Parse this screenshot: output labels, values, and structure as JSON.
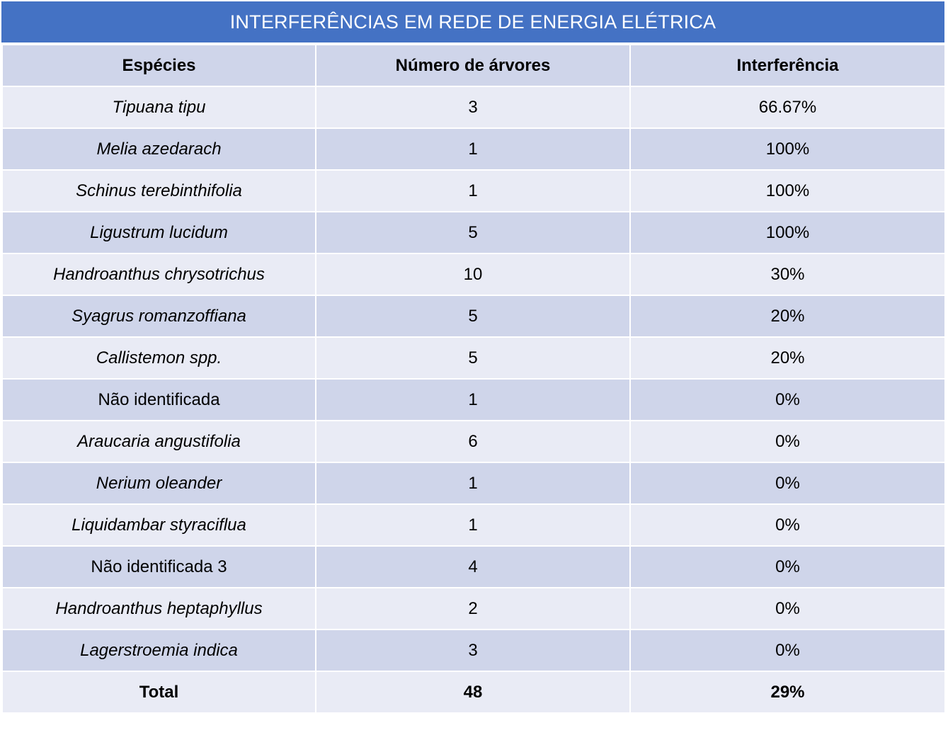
{
  "title": "INTERFERÊNCIAS EM REDE DE ENERGIA ELÉTRICA",
  "headers": [
    "Espécies",
    "Número de árvores",
    "Interferência"
  ],
  "rows": [
    {
      "species": "Tipuana tipu",
      "italic": true,
      "count": "3",
      "interference": "66.67%"
    },
    {
      "species": "Melia azedarach",
      "italic": true,
      "count": "1",
      "interference": "100%"
    },
    {
      "species": "Schinus terebinthifolia",
      "italic": true,
      "count": "1",
      "interference": "100%"
    },
    {
      "species": "Ligustrum lucidum",
      "italic": true,
      "count": "5",
      "interference": "100%"
    },
    {
      "species": "Handroanthus chrysotrichus",
      "italic": true,
      "count": "10",
      "interference": "30%"
    },
    {
      "species": "Syagrus romanzoffiana",
      "italic": true,
      "count": "5",
      "interference": "20%"
    },
    {
      "species": "Callistemon spp.",
      "italic": true,
      "count": "5",
      "interference": "20%"
    },
    {
      "species": "Não identificada",
      "italic": false,
      "count": "1",
      "interference": "0%"
    },
    {
      "species": "Araucaria angustifolia",
      "italic": true,
      "count": "6",
      "interference": "0%"
    },
    {
      "species": "Nerium oleander",
      "italic": true,
      "count": "1",
      "interference": "0%"
    },
    {
      "species": "Liquidambar styraciflua",
      "italic": true,
      "count": "1",
      "interference": "0%"
    },
    {
      "species": "Não identificada 3",
      "italic": false,
      "count": "4",
      "interference": "0%"
    },
    {
      "species": "Handroanthus heptaphyllus",
      "italic": true,
      "count": "2",
      "interference": "0%"
    },
    {
      "species": "Lagerstroemia indica",
      "italic": true,
      "count": "3",
      "interference": "0%"
    }
  ],
  "total": {
    "label": "Total",
    "count": "48",
    "interference": "29%"
  },
  "colors": {
    "title_bg": "#4472c4",
    "row_dark": "#cfd5ea",
    "row_light": "#e9ebf5"
  }
}
